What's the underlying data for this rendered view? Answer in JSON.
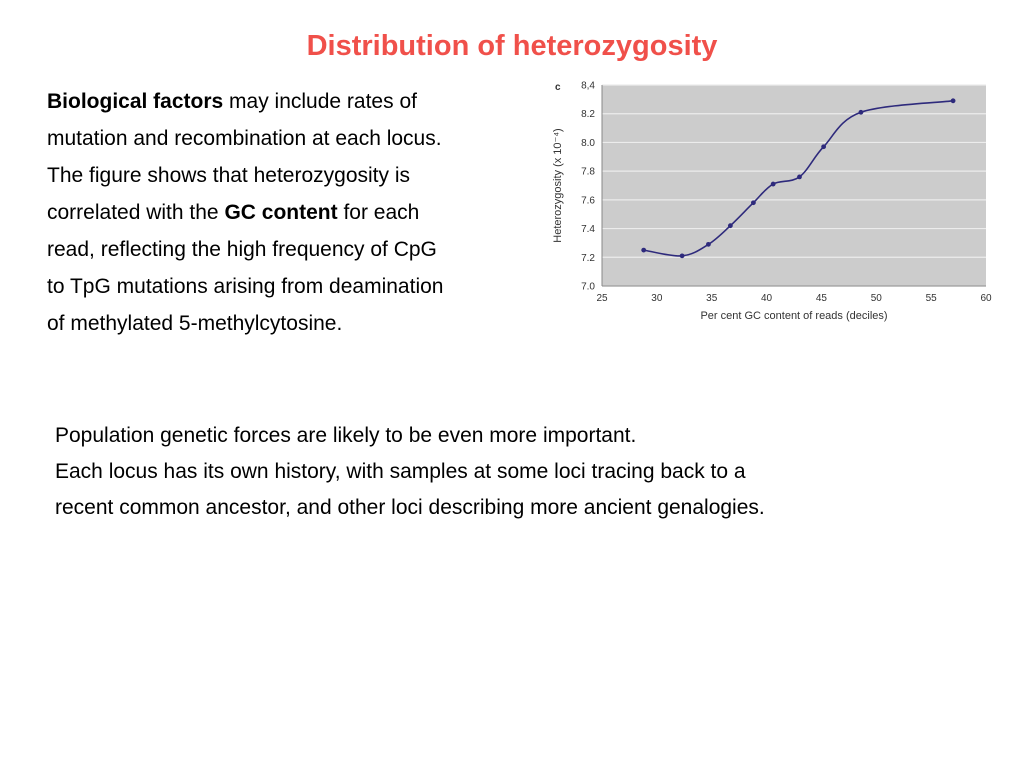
{
  "slide": {
    "title": "Distribution of heterozygosity",
    "paragraph1": {
      "l1_bold": "Biological factors",
      "l1_rest": " may include rates of",
      "l2": "mutation and recombination at each locus.",
      "l3": "The figure shows that heterozygosity is",
      "l4_pre": "correlated with the ",
      "l4_bold": "GC content",
      "l4_post": " for each",
      "l5": "read, reflecting the high frequency of CpG",
      "l6": "to TpG mutations arising from deamination",
      "l7": "of methylated 5-methylcytosine."
    },
    "paragraph2": {
      "l1": "Population genetic forces are likely to be even more important.",
      "l2": "Each locus has its own history, with samples at some loci tracing back to a",
      "l3": "recent common ancestor, and other loci describing more ancient genalogies."
    }
  },
  "colors": {
    "title": "#f0504a",
    "plot_bg": "#cccccc",
    "grid": "#ececec",
    "series": "#2e2a7c"
  },
  "chart_data": {
    "type": "line",
    "panel_label": "c",
    "xlabel": "Per cent GC content of reads (deciles)",
    "ylabel": "Heterozygosity (x 10⁻⁴)",
    "xlim": [
      25,
      60
    ],
    "ylim": [
      7.0,
      8.4
    ],
    "xticks": [
      25,
      30,
      35,
      40,
      45,
      50,
      55,
      60
    ],
    "yticks": [
      7.0,
      7.2,
      7.4,
      7.6,
      7.8,
      8.0,
      8.2,
      8.4
    ],
    "ytick_labels": [
      "7.0",
      "7.2",
      "7.4",
      "7.6",
      "7.8",
      "8.0",
      "8.2",
      "8,4"
    ],
    "grid": true,
    "x": [
      28.8,
      32.3,
      34.7,
      36.7,
      38.8,
      40.6,
      43.0,
      45.2,
      48.6,
      57.0
    ],
    "y": [
      7.25,
      7.21,
      7.29,
      7.42,
      7.58,
      7.71,
      7.76,
      7.97,
      8.21,
      8.29
    ]
  }
}
